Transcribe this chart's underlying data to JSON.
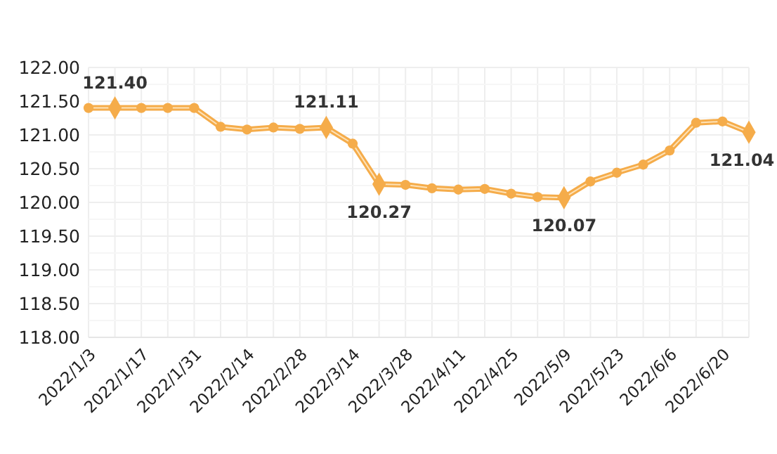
{
  "chart_data": {
    "type": "line",
    "categories": [
      "2022/1/3",
      null,
      "2022/1/17",
      null,
      "2022/1/31",
      null,
      "2022/2/14",
      null,
      "2022/2/28",
      null,
      "2022/3/14",
      null,
      "2022/3/28",
      null,
      "2022/4/11",
      null,
      "2022/4/25",
      null,
      "2022/5/9",
      null,
      "2022/5/23",
      null,
      "2022/6/6",
      null,
      "2022/6/20",
      null
    ],
    "series": [
      {
        "color": "#f5ac4a",
        "values": [
          121.4,
          121.4,
          121.4,
          121.4,
          121.4,
          121.12,
          121.08,
          121.11,
          121.09,
          121.11,
          120.87,
          120.27,
          120.26,
          120.21,
          120.19,
          120.2,
          120.13,
          120.08,
          120.07,
          120.31,
          120.44,
          120.56,
          120.77,
          121.18,
          121.2,
          121.04
        ],
        "value_labels": [
          null,
          "121.40",
          null,
          null,
          null,
          null,
          null,
          null,
          null,
          "121.11",
          null,
          "120.27",
          null,
          null,
          null,
          null,
          null,
          null,
          "120.07",
          null,
          null,
          null,
          null,
          null,
          null,
          "121.04"
        ]
      }
    ],
    "ylim": [
      118,
      122
    ],
    "yticks": [
      {
        "value": 118,
        "label": "118.00"
      },
      {
        "value": 118.5,
        "label": "118.50"
      },
      {
        "value": 119,
        "label": "119.00"
      },
      {
        "value": 119.5,
        "label": "119.50"
      },
      {
        "value": 120,
        "label": "120.00"
      },
      {
        "value": 120.5,
        "label": "120.50"
      },
      {
        "value": 121,
        "label": "121.00"
      },
      {
        "value": 121.5,
        "label": "121.50"
      },
      {
        "value": 122,
        "label": "122.00"
      }
    ],
    "grid": true,
    "marker": "circle"
  }
}
